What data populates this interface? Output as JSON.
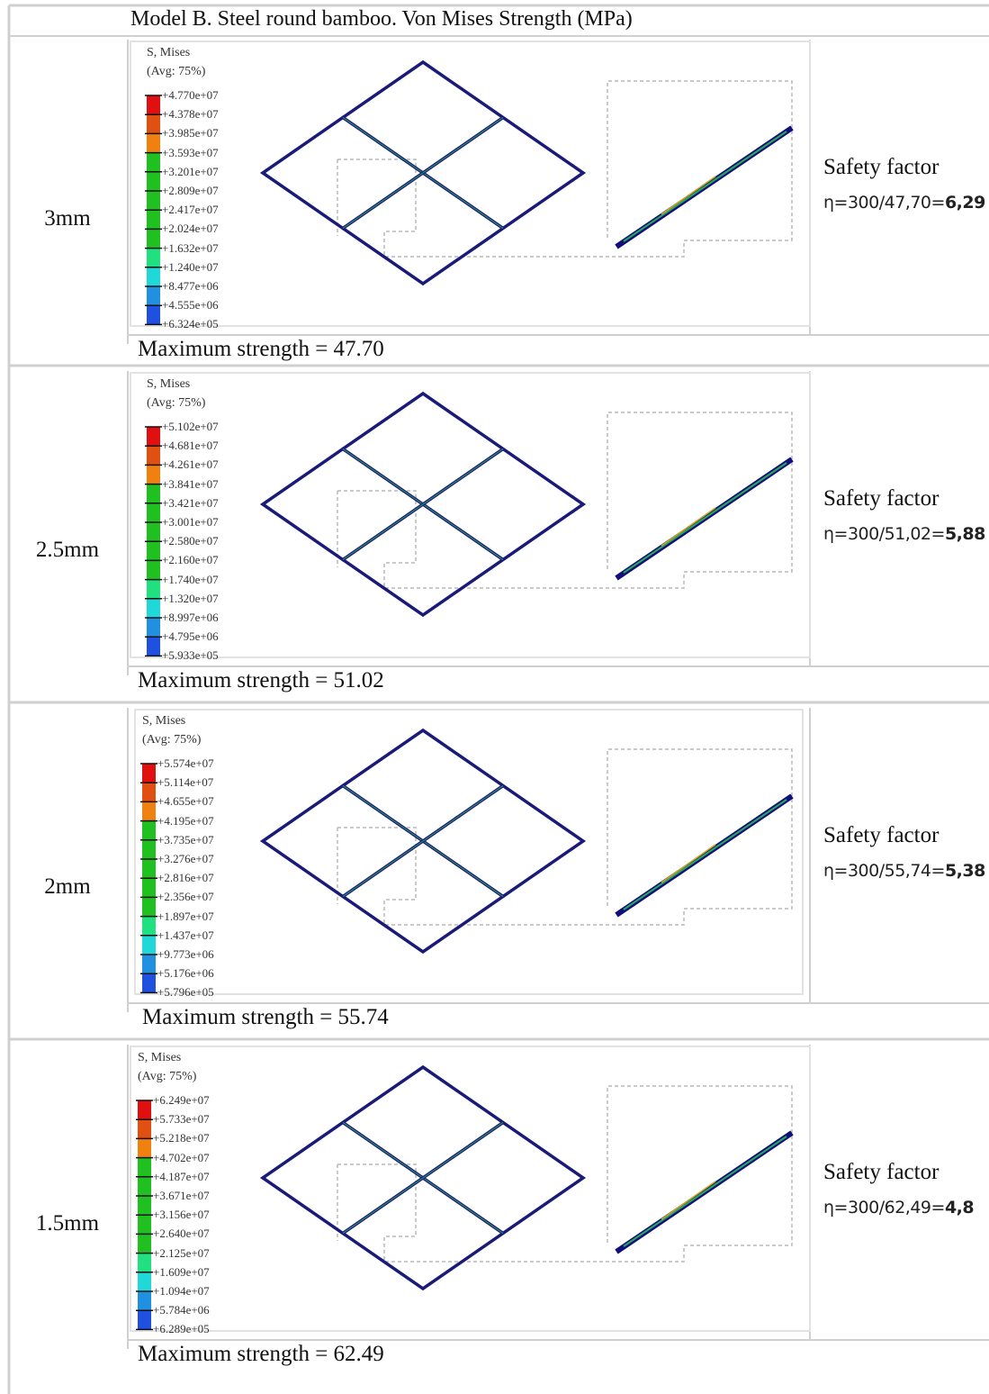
{
  "title": "Model B. Steel round bamboo. Von Mises Strength (MPa)",
  "legend": {
    "line1": "S, Mises",
    "line2": "(Avg: 75%)"
  },
  "safety_title": "Safety factor",
  "max_prefix": "Maximum strength = ",
  "palette": [
    "#e01010",
    "#e05010",
    "#f08010",
    "#20c020",
    "#20c020",
    "#20c020",
    "#20c020",
    "#20c020",
    "#20e080",
    "#20d8d8",
    "#2090e0",
    "#2050e0",
    "#1010d0"
  ],
  "rows": [
    {
      "thickness": "3mm",
      "max_value": "47.70",
      "formula": "η=300/47,70=",
      "factor": "6,29",
      "ticks": [
        "+4.770e+07",
        "+4.378e+07",
        "+3.985e+07",
        "+3.593e+07",
        "+3.201e+07",
        "+2.809e+07",
        "+2.417e+07",
        "+2.024e+07",
        "+1.632e+07",
        "+1.240e+07",
        "+8.477e+06",
        "+4.555e+06",
        "+6.324e+05"
      ]
    },
    {
      "thickness": "2.5mm",
      "max_value": "51.02",
      "formula": "η=300/51,02=",
      "factor": "5,88",
      "ticks": [
        "+5.102e+07",
        "+4.681e+07",
        "+4.261e+07",
        "+3.841e+07",
        "+3.421e+07",
        "+3.001e+07",
        "+2.580e+07",
        "+2.160e+07",
        "+1.740e+07",
        "+1.320e+07",
        "+8.997e+06",
        "+4.795e+06",
        "+5.933e+05"
      ]
    },
    {
      "thickness": "2mm",
      "max_value": "55.74",
      "formula": "η=300/55,74=",
      "factor": "5,38",
      "ticks": [
        "+5.574e+07",
        "+5.114e+07",
        "+4.655e+07",
        "+4.195e+07",
        "+3.735e+07",
        "+3.276e+07",
        "+2.816e+07",
        "+2.356e+07",
        "+1.897e+07",
        "+1.437e+07",
        "+9.773e+06",
        "+5.176e+06",
        "+5.796e+05"
      ]
    },
    {
      "thickness": "1.5mm",
      "max_value": "62.49",
      "formula": "η=300/62,49=",
      "factor": "4,8",
      "ticks": [
        "+6.249e+07",
        "+5.733e+07",
        "+5.218e+07",
        "+4.702e+07",
        "+4.187e+07",
        "+3.671e+07",
        "+3.156e+07",
        "+2.640e+07",
        "+2.125e+07",
        "+1.609e+07",
        "+1.094e+07",
        "+5.784e+06",
        "+6.289e+05"
      ]
    }
  ]
}
